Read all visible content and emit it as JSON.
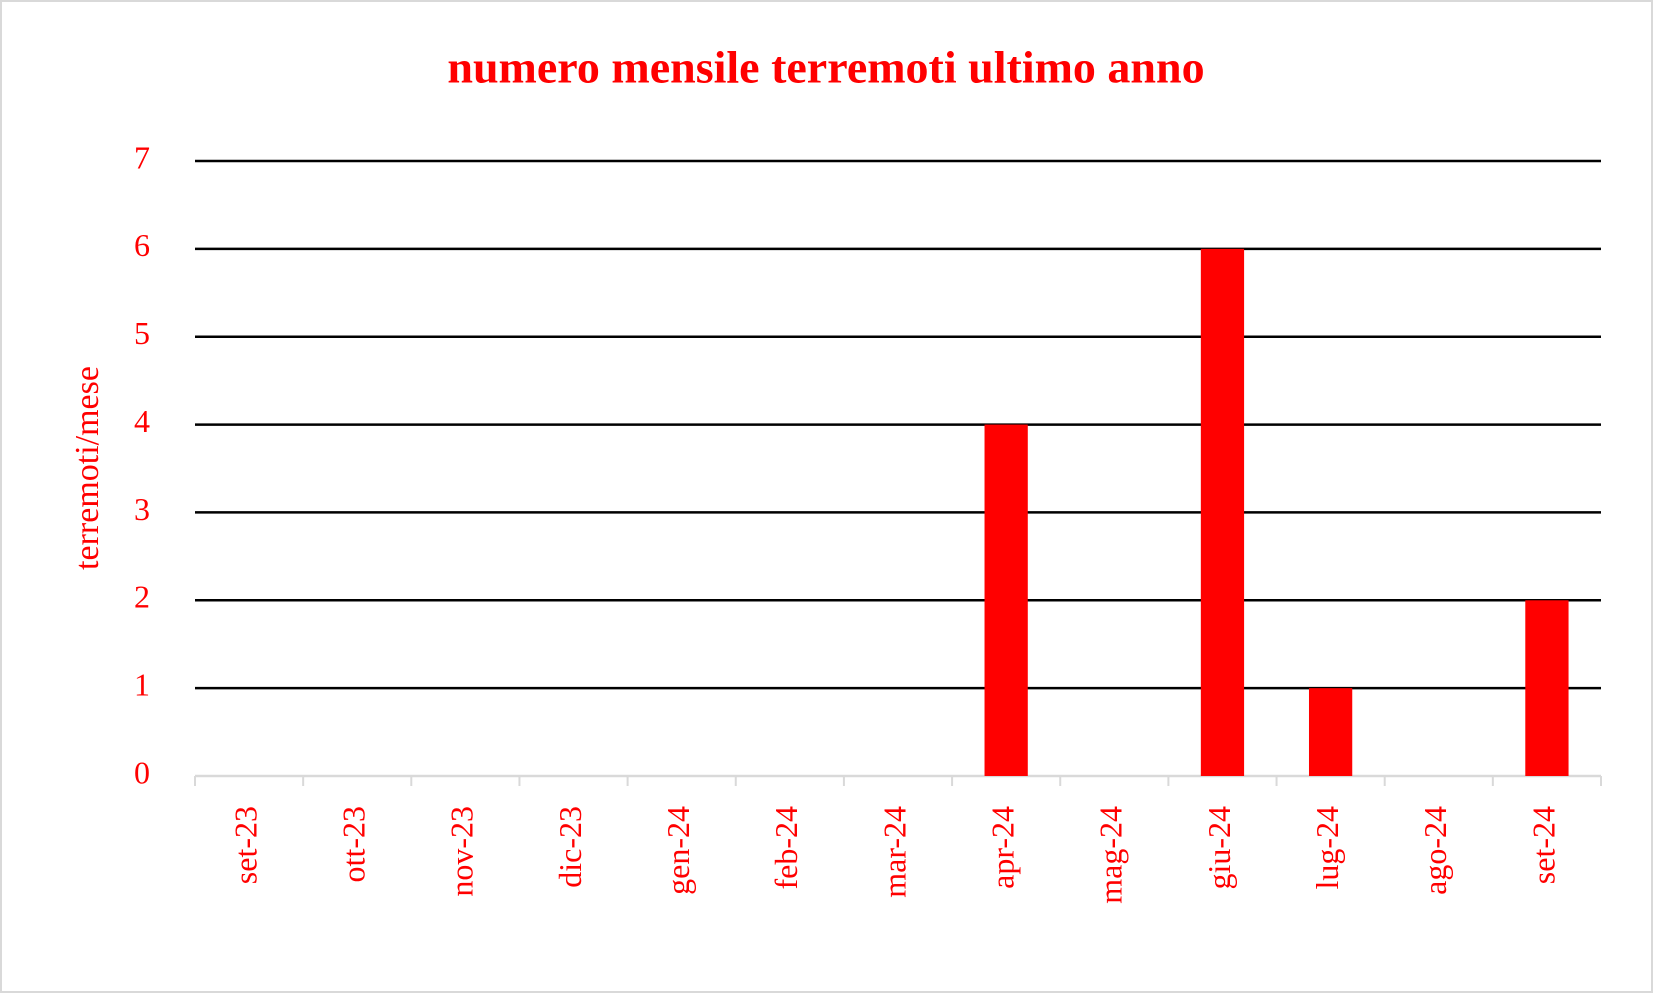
{
  "chart_data": {
    "type": "bar",
    "title": "numero mensile terremoti ultimo anno",
    "y_label": "terremoti/mese",
    "categories": [
      "set-23",
      "ott-23",
      "nov-23",
      "dic-23",
      "gen-24",
      "feb-24",
      "mar-24",
      "apr-24",
      "mag-24",
      "giu-24",
      "lug-24",
      "ago-24",
      "set-24"
    ],
    "values": [
      0,
      0,
      0,
      0,
      0,
      0,
      0,
      4,
      0,
      6,
      1,
      0,
      2
    ],
    "color": "#ff0000",
    "ylim": [
      0,
      7
    ],
    "yticks": [
      0,
      1,
      2,
      3,
      4,
      5,
      6,
      7
    ],
    "grid": true
  }
}
